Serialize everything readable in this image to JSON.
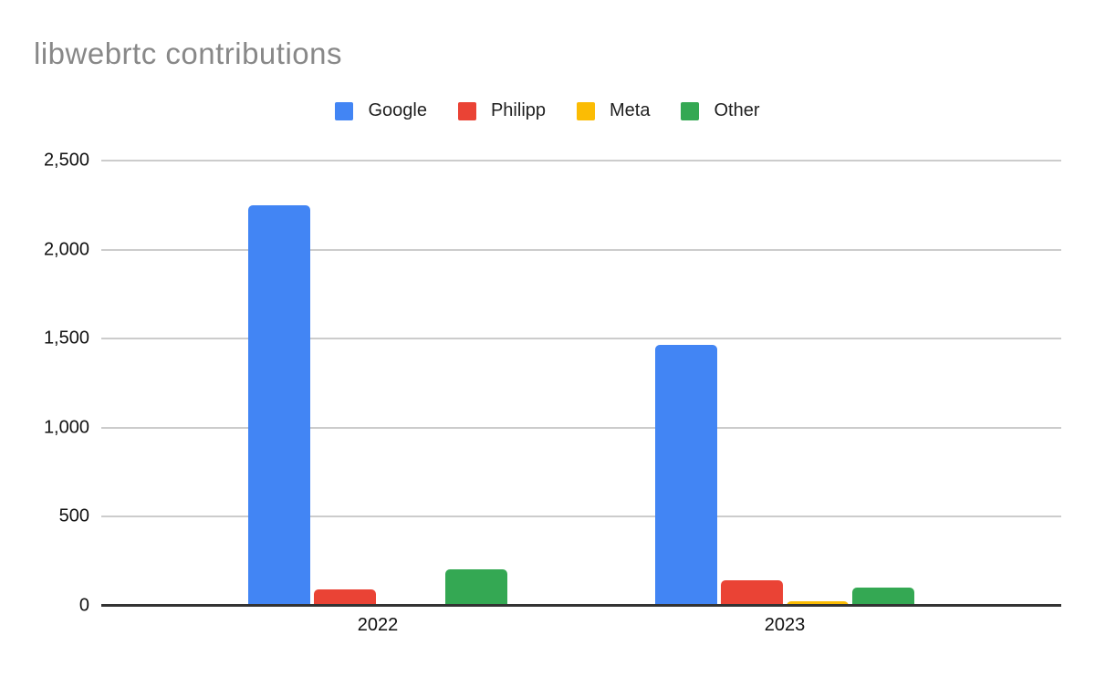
{
  "chart_data": {
    "type": "bar",
    "title": "libwebrtc contributions",
    "categories": [
      "2022",
      "2023"
    ],
    "series": [
      {
        "name": "Google",
        "color": "#4285F4",
        "values": [
          2250,
          1465
        ]
      },
      {
        "name": "Philipp",
        "color": "#EA4335",
        "values": [
          90,
          145
        ]
      },
      {
        "name": "Meta",
        "color": "#FBBC04",
        "values": [
          0,
          25
        ]
      },
      {
        "name": "Other",
        "color": "#34A853",
        "values": [
          205,
          100
        ]
      }
    ],
    "xlabel": "",
    "ylabel": "",
    "ylim": [
      0,
      2500
    ],
    "yticks": [
      {
        "value": 0,
        "label": "0"
      },
      {
        "value": 500,
        "label": "500"
      },
      {
        "value": 1000,
        "label": "1,000"
      },
      {
        "value": 1500,
        "label": "1,500"
      },
      {
        "value": 2000,
        "label": "2,000"
      },
      {
        "value": 2500,
        "label": "2,500"
      }
    ],
    "legend_position": "top",
    "grid": true,
    "colors": {
      "background": "#ffffff",
      "title_text": "#888888",
      "axis_line": "#333333",
      "gridline": "#cccccc",
      "tick_text": "#111111"
    }
  }
}
